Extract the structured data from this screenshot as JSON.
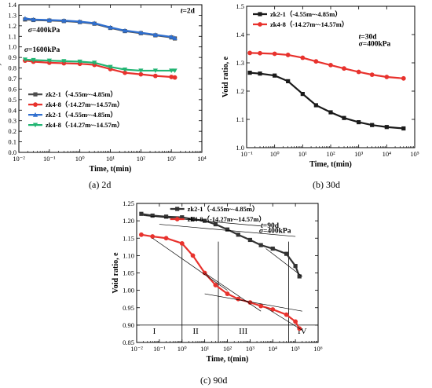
{
  "captions": {
    "a": "(a) 2d",
    "b": "(b) 30d",
    "c": "(c) 90d"
  },
  "chart_data": [
    {
      "id": "a",
      "type": "scatter",
      "xscale": "log",
      "xlim": [
        0.01,
        10000
      ],
      "ylim": [
        0,
        1.4
      ],
      "xticks": [
        {
          "v": 0.01,
          "label": "10⁻²"
        },
        {
          "v": 0.1,
          "label": "10⁻¹"
        },
        {
          "v": 1,
          "label": "10⁰"
        },
        {
          "v": 10,
          "label": "10¹"
        },
        {
          "v": 100,
          "label": "10²"
        },
        {
          "v": 1000,
          "label": "10³"
        },
        {
          "v": 10000,
          "label": "10⁴"
        }
      ],
      "yticks": [
        0,
        0.1,
        0.2,
        0.3,
        0.4,
        0.5,
        0.6,
        0.7,
        0.8,
        0.9,
        1.0,
        1.1,
        1.2,
        1.3,
        1.4
      ],
      "xlabel": "Time, t(min)",
      "ylabel": "Void ratio, e",
      "annotations": [
        {
          "text": "t=2d",
          "x": 2000,
          "y": 1.32
        },
        {
          "text": "σ=400kPa",
          "x": 0.02,
          "y": 1.14
        },
        {
          "text": "σ=1600kPa",
          "x": 0.015,
          "y": 0.955
        }
      ],
      "legend_position": "bottom-left",
      "series": [
        {
          "name": "zk2-1（-4.55m~-4.85m）",
          "color": "#4d4d4d",
          "marker": "square",
          "x": [
            0.016,
            0.03,
            0.1,
            0.3,
            1,
            3,
            10,
            30,
            100,
            300,
            1000,
            1300
          ],
          "y": [
            1.26,
            1.255,
            1.25,
            1.245,
            1.235,
            1.22,
            1.18,
            1.15,
            1.13,
            1.11,
            1.09,
            1.08
          ]
        },
        {
          "name": "zk4-8（-14.27m~-14.57m）",
          "color": "#e8322d",
          "marker": "circle",
          "x": [
            0.016,
            0.03,
            0.1,
            0.3,
            1,
            3,
            10,
            30,
            100,
            300,
            1000,
            1300
          ],
          "y": [
            0.87,
            0.86,
            0.85,
            0.845,
            0.84,
            0.83,
            0.79,
            0.755,
            0.74,
            0.725,
            0.715,
            0.71
          ]
        },
        {
          "name": "zk2-1（-4.55m~-4.85m）",
          "color": "#2f6fcf",
          "marker": "triangle-up",
          "x": [
            0.016,
            0.03,
            0.1,
            0.3,
            1,
            3,
            10,
            30,
            100,
            300,
            1000,
            1300
          ],
          "y": [
            1.27,
            1.26,
            1.255,
            1.25,
            1.24,
            1.225,
            1.185,
            1.155,
            1.135,
            1.115,
            1.095,
            1.085
          ]
        },
        {
          "name": "zk4-8（-14.27m~-14.57m）",
          "color": "#22b573",
          "marker": "triangle-down",
          "x": [
            0.016,
            0.03,
            0.1,
            0.3,
            1,
            3,
            10,
            30,
            100,
            300,
            1000,
            1300
          ],
          "y": [
            0.88,
            0.875,
            0.87,
            0.865,
            0.86,
            0.85,
            0.81,
            0.785,
            0.775,
            0.775,
            0.775,
            0.775
          ]
        }
      ]
    },
    {
      "id": "b",
      "type": "scatter",
      "xscale": "log",
      "xlim": [
        0.1,
        100000
      ],
      "ylim": [
        1.0,
        1.5
      ],
      "xticks": [
        {
          "v": 0.1,
          "label": "10⁻¹"
        },
        {
          "v": 1,
          "label": "10⁰"
        },
        {
          "v": 10,
          "label": "10¹"
        },
        {
          "v": 100,
          "label": "10²"
        },
        {
          "v": 1000,
          "label": "10³"
        },
        {
          "v": 10000,
          "label": "10⁴"
        },
        {
          "v": 100000,
          "label": "10⁵"
        }
      ],
      "yticks": [
        1.0,
        1.1,
        1.2,
        1.3,
        1.4,
        1.5
      ],
      "xlabel": "Time, t(min)",
      "ylabel": "Void ratio, e",
      "annotations": [
        {
          "text": "t=30d",
          "x": 1000,
          "y": 1.385
        },
        {
          "text": "σ=400kPa",
          "x": 1000,
          "y": 1.36
        }
      ],
      "legend_position": "top-left",
      "series": [
        {
          "name": "zk2-1（-4.55m~-4.85m）",
          "color": "#1a1a1a",
          "marker": "square",
          "x": [
            0.13,
            0.3,
            1,
            3,
            10,
            30,
            100,
            300,
            1000,
            3000,
            10000,
            40000
          ],
          "y": [
            1.265,
            1.262,
            1.255,
            1.235,
            1.19,
            1.15,
            1.125,
            1.105,
            1.09,
            1.08,
            1.073,
            1.068
          ]
        },
        {
          "name": "zk4-8（-14.27m~-14.57m）",
          "color": "#e8322d",
          "marker": "circle",
          "x": [
            0.13,
            0.3,
            1,
            3,
            10,
            30,
            100,
            300,
            1000,
            3000,
            10000,
            40000
          ],
          "y": [
            1.335,
            1.334,
            1.332,
            1.328,
            1.318,
            1.305,
            1.292,
            1.28,
            1.268,
            1.258,
            1.25,
            1.245
          ]
        }
      ]
    },
    {
      "id": "c",
      "type": "scatter",
      "xscale": "log",
      "xlim": [
        0.01,
        1000000
      ],
      "ylim": [
        0.85,
        1.25
      ],
      "xticks": [
        {
          "v": 0.01,
          "label": "10⁻²"
        },
        {
          "v": 0.1,
          "label": "10⁻¹"
        },
        {
          "v": 1,
          "label": "10⁰"
        },
        {
          "v": 10,
          "label": "10¹"
        },
        {
          "v": 100,
          "label": "10²"
        },
        {
          "v": 1000,
          "label": "10³"
        },
        {
          "v": 10000,
          "label": "10⁴"
        },
        {
          "v": 100000,
          "label": "10⁵"
        },
        {
          "v": 1000000,
          "label": "10⁶"
        }
      ],
      "yticks": [
        0.85,
        0.9,
        0.95,
        1.0,
        1.05,
        1.1,
        1.15,
        1.2,
        1.25
      ],
      "xlabel": "Time, t(min)",
      "ylabel": "Void ratio, e",
      "annotations": [
        {
          "text": "t=90d",
          "x": 3000,
          "y": 1.18
        },
        {
          "text": "σ=400kPa",
          "x": 2500,
          "y": 1.165
        }
      ],
      "stage_labels": [
        {
          "text": "I",
          "x": 0.06
        },
        {
          "text": "II",
          "x": 4
        },
        {
          "text": "III",
          "x": 500
        },
        {
          "text": "IV",
          "x": 200000
        }
      ],
      "legend_position": "top",
      "series": [
        {
          "name": "zk2-1（-4.55m~-4.85m）",
          "color": "#333333",
          "marker": "square",
          "x": [
            0.016,
            0.05,
            0.2,
            1,
            3,
            10,
            30,
            100,
            300,
            1000,
            3000,
            10000,
            40000,
            100000,
            150000
          ],
          "y": [
            1.22,
            1.215,
            1.212,
            1.21,
            1.205,
            1.2,
            1.19,
            1.175,
            1.16,
            1.145,
            1.13,
            1.12,
            1.105,
            1.07,
            1.04
          ]
        },
        {
          "name": "zk4-8（-14.27m~-14.57m）",
          "color": "#e8322d",
          "marker": "circle",
          "x": [
            0.016,
            0.05,
            0.2,
            1,
            3,
            10,
            30,
            100,
            300,
            1000,
            3000,
            10000,
            40000,
            100000,
            150000
          ],
          "y": [
            1.16,
            1.155,
            1.15,
            1.135,
            1.1,
            1.05,
            1.015,
            0.99,
            0.975,
            0.965,
            0.955,
            0.945,
            0.93,
            0.91,
            0.89
          ]
        }
      ]
    }
  ]
}
